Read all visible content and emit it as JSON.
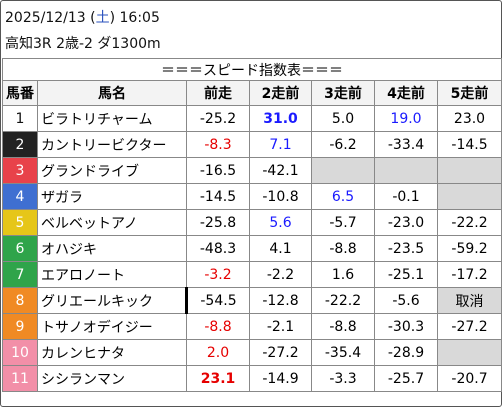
{
  "header": {
    "line1": [
      "2025/12/13 (",
      "土",
      ") 16:05"
    ],
    "line1_colors": [
      "#111111",
      "#2a52be",
      "#111111"
    ],
    "line2": "高知3R 2歳-2 ダ1300m"
  },
  "table": {
    "title": "＝＝＝スピード指数表＝＝＝",
    "columns": [
      "馬番",
      "馬名",
      "前走",
      "2走前",
      "3走前",
      "4走前",
      "5走前"
    ],
    "rows": [
      {
        "number": "1",
        "frame_color": "#ffffff",
        "frame_text": "#111111",
        "name": "ビラトリチャーム",
        "cells": [
          {
            "text": "-25.2"
          },
          {
            "text": "31.0",
            "color": "#1a1aff",
            "bold": true
          },
          {
            "text": "5.0"
          },
          {
            "text": "19.0",
            "color": "#1a1aff"
          },
          {
            "text": "23.0"
          }
        ]
      },
      {
        "number": "2",
        "frame_color": "#222222",
        "frame_text": "#ffffff",
        "name": "カントリービクター",
        "cells": [
          {
            "text": "-8.3",
            "color": "#e60000"
          },
          {
            "text": "7.1",
            "color": "#1a1aff"
          },
          {
            "text": "-6.2"
          },
          {
            "text": "-33.4"
          },
          {
            "text": "-14.5"
          }
        ]
      },
      {
        "number": "3",
        "frame_color": "#e8424a",
        "frame_text": "#ffffff",
        "name": "グランドライブ",
        "cells": [
          {
            "text": "-16.5"
          },
          {
            "text": "-42.1"
          },
          {
            "fill": "#d9d9d9"
          },
          {
            "fill": "#d9d9d9"
          },
          {
            "fill": "#d9d9d9"
          }
        ]
      },
      {
        "number": "4",
        "frame_color": "#3f6fd1",
        "frame_text": "#ffffff",
        "name": "ザガラ",
        "cells": [
          {
            "text": "-14.5"
          },
          {
            "text": "-10.8"
          },
          {
            "text": "6.5",
            "color": "#1a1aff"
          },
          {
            "text": "-0.1"
          },
          {
            "fill": "#d9d9d9"
          }
        ]
      },
      {
        "number": "5",
        "frame_color": "#e6c619",
        "frame_text": "#ffffff",
        "name": "ベルベットアノ",
        "cells": [
          {
            "text": "-25.8"
          },
          {
            "text": "5.6",
            "color": "#1a1aff"
          },
          {
            "text": "-5.7"
          },
          {
            "text": "-23.0"
          },
          {
            "text": "-22.2"
          }
        ]
      },
      {
        "number": "6",
        "frame_color": "#2fa44a",
        "frame_text": "#ffffff",
        "name": "オハジキ",
        "cells": [
          {
            "text": "-48.3"
          },
          {
            "text": "4.1"
          },
          {
            "text": "-8.8"
          },
          {
            "text": "-23.5"
          },
          {
            "text": "-59.2"
          }
        ]
      },
      {
        "number": "7",
        "frame_color": "#2fa44a",
        "frame_text": "#ffffff",
        "name": "エアロノート",
        "cells": [
          {
            "text": "-3.2",
            "color": "#e60000"
          },
          {
            "text": "-2.2"
          },
          {
            "text": "1.6"
          },
          {
            "text": "-25.1"
          },
          {
            "text": "-17.2"
          }
        ]
      },
      {
        "number": "8",
        "frame_color": "#f08a24",
        "frame_text": "#ffffff",
        "name": "グリエールキック",
        "cells": [
          {
            "text": "-54.5"
          },
          {
            "text": "-12.8"
          },
          {
            "text": "-22.2"
          },
          {
            "text": "-5.6"
          },
          {
            "text": "取消",
            "fill": "#d9d9d9"
          }
        ]
      },
      {
        "number": "9",
        "frame_color": "#f08a24",
        "frame_text": "#ffffff",
        "name": "トサノオデイジー",
        "cells": [
          {
            "text": "-8.8",
            "color": "#e60000"
          },
          {
            "text": "-2.1"
          },
          {
            "text": "-8.8"
          },
          {
            "text": "-30.3"
          },
          {
            "text": "-27.2"
          }
        ]
      },
      {
        "number": "10",
        "frame_color": "#f28fa8",
        "frame_text": "#ffffff",
        "name": "カレンヒナタ",
        "cells": [
          {
            "text": "2.0",
            "color": "#e60000"
          },
          {
            "text": "-27.2"
          },
          {
            "text": "-35.4"
          },
          {
            "text": "-28.9"
          },
          {
            "fill": "#d9d9d9"
          }
        ]
      },
      {
        "number": "11",
        "frame_color": "#f28fa8",
        "frame_text": "#ffffff",
        "name": "シシランマン",
        "cells": [
          {
            "text": "23.1",
            "color": "#e60000",
            "bold": true
          },
          {
            "text": "-14.9"
          },
          {
            "text": "-3.3"
          },
          {
            "text": "-25.7"
          },
          {
            "text": "-20.7"
          }
        ]
      }
    ]
  }
}
